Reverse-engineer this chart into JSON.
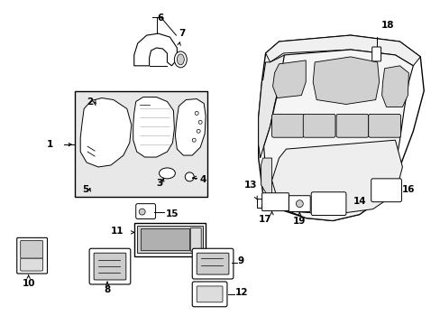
{
  "background_color": "#ffffff",
  "line_color": "#000000",
  "figsize": [
    4.89,
    3.6
  ],
  "dpi": 100,
  "label_fs": 7.5,
  "lw": 0.8
}
